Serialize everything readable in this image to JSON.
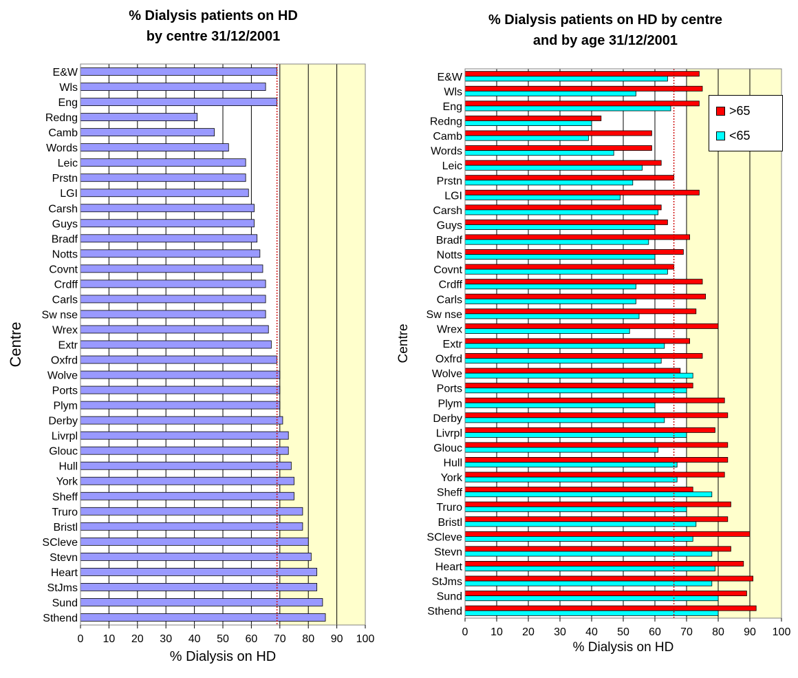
{
  "chart_data": [
    {
      "type": "bar",
      "orientation": "horizontal",
      "title": [
        "% Dialysis patients on HD",
        "by centre 31/12/2001"
      ],
      "xlabel": "% Dialysis on HD",
      "ylabel": "Centre",
      "xlim": [
        0,
        100
      ],
      "xticks": [
        0,
        10,
        20,
        30,
        40,
        50,
        60,
        70,
        80,
        90,
        100
      ],
      "reference_line": 69,
      "shaded_from": 70,
      "colors": {
        "bar": "#9999ff",
        "shade": "#ffffcc",
        "reference": "#cc0000"
      },
      "categories": [
        "E&W",
        "Wls",
        "Eng",
        "Redng",
        "Camb",
        "Words",
        "Leic",
        "Prstn",
        "LGI",
        "Carsh",
        "Guys",
        "Bradf",
        "Notts",
        "Covnt",
        "Crdff",
        "Carls",
        "Sw nse",
        "Wrex",
        "Extr",
        "Oxfrd",
        "Wolve",
        "Ports",
        "Plym",
        "Derby",
        "Livrpl",
        "Glouc",
        "Hull",
        "York",
        "Sheff",
        "Truro",
        "Bristl",
        "SCleve",
        "Stevn",
        "Heart",
        "StJms",
        "Sund",
        "Sthend"
      ],
      "values": [
        69,
        65,
        69,
        41,
        47,
        52,
        58,
        58,
        59,
        61,
        61,
        62,
        63,
        64,
        65,
        65,
        65,
        66,
        67,
        69,
        70,
        70,
        70,
        71,
        73,
        73,
        74,
        75,
        75,
        78,
        78,
        80,
        81,
        83,
        83,
        85,
        86
      ]
    },
    {
      "type": "bar",
      "orientation": "horizontal",
      "title": [
        "% Dialysis patients on HD by centre",
        "and by age 31/12/2001"
      ],
      "xlabel": "% Dialysis on HD",
      "ylabel": "Centre",
      "xlim": [
        0,
        100
      ],
      "xticks": [
        0,
        10,
        20,
        30,
        40,
        50,
        60,
        70,
        80,
        90,
        100
      ],
      "reference_line": 66,
      "shaded_from": 70,
      "colors": {
        "shade": "#ffffcc",
        "reference": "#cc0000"
      },
      "legend": "top-right",
      "categories": [
        "E&W",
        "Wls",
        "Eng",
        "Redng",
        "Camb",
        "Words",
        "Leic",
        "Prstn",
        "LGI",
        "Carsh",
        "Guys",
        "Bradf",
        "Notts",
        "Covnt",
        "Crdff",
        "Carls",
        "Sw nse",
        "Wrex",
        "Extr",
        "Oxfrd",
        "Wolve",
        "Ports",
        "Plym",
        "Derby",
        "Livrpl",
        "Glouc",
        "Hull",
        "York",
        "Sheff",
        "Truro",
        "Bristl",
        "SCleve",
        "Stevn",
        "Heart",
        "StJms",
        "Sund",
        "Sthend"
      ],
      "series": [
        {
          "name": ">65",
          "color": "#ff0000",
          "values": [
            74,
            75,
            74,
            43,
            59,
            59,
            62,
            66,
            74,
            62,
            64,
            71,
            69,
            66,
            75,
            76,
            73,
            80,
            71,
            75,
            68,
            72,
            82,
            83,
            79,
            83,
            83,
            82,
            72,
            84,
            83,
            90,
            84,
            88,
            91,
            89,
            92
          ]
        },
        {
          "name": "<65",
          "color": "#00ffff",
          "values": [
            64,
            54,
            65,
            40,
            39,
            47,
            56,
            53,
            49,
            61,
            60,
            58,
            60,
            64,
            54,
            54,
            55,
            52,
            63,
            62,
            72,
            70,
            60,
            63,
            70,
            61,
            67,
            67,
            78,
            70,
            73,
            72,
            78,
            79,
            78,
            80,
            80
          ]
        }
      ]
    }
  ]
}
